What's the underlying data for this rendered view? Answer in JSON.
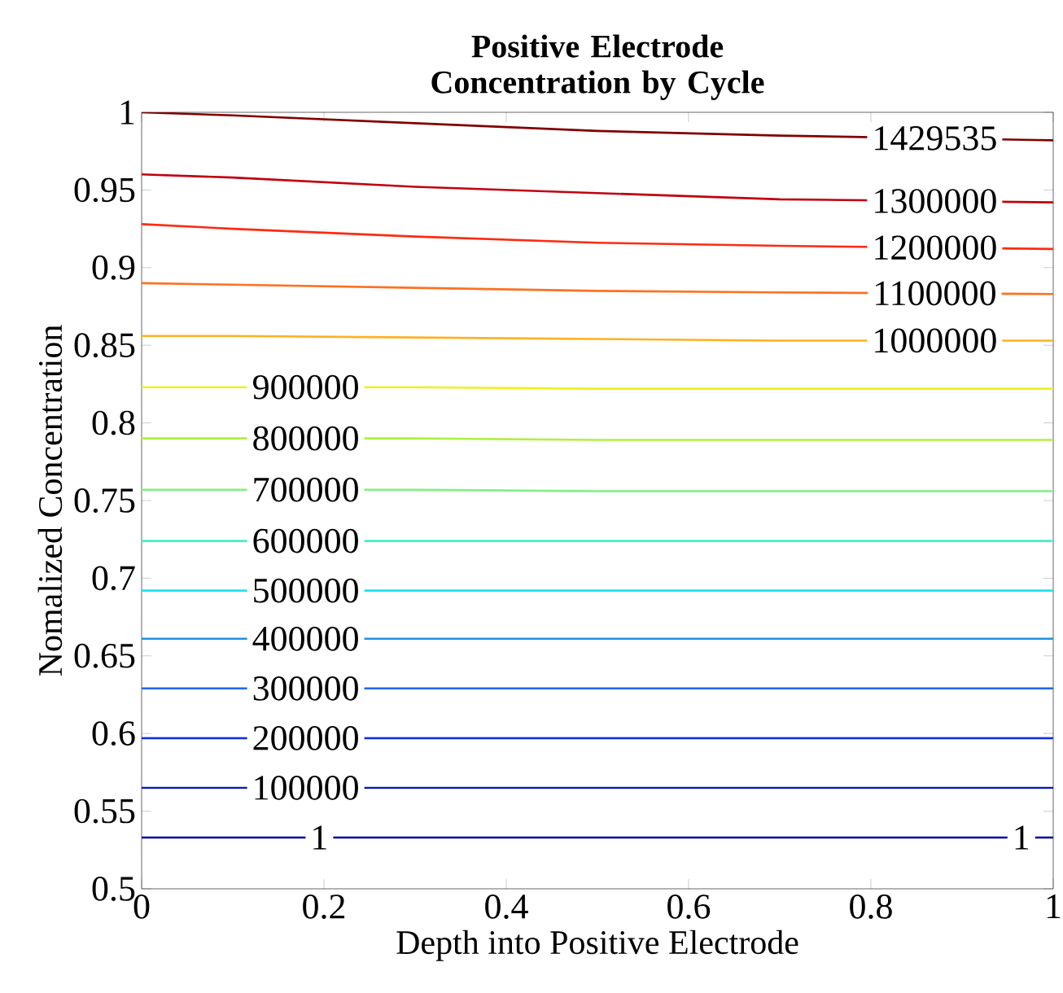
{
  "chart_data": {
    "type": "line",
    "title": "Positive Electrode Concentration by Cycle",
    "xlabel": "Depth into Positive Electrode",
    "ylabel": "Nomalized Concentration",
    "x": [
      0,
      0.1,
      0.3,
      0.5,
      0.7,
      1
    ],
    "xlim": [
      0,
      1
    ],
    "ylim": [
      0.5,
      1
    ],
    "xticks": [
      0,
      0.2,
      0.4,
      0.6,
      0.8,
      1
    ],
    "yticks": [
      0.5,
      0.55,
      0.6,
      0.65,
      0.7,
      0.75,
      0.8,
      0.85,
      0.9,
      0.95,
      1
    ],
    "grid": false,
    "legend": false,
    "marker": "none",
    "line_style": "solid",
    "series": [
      {
        "name": "1429535",
        "color": "#800000",
        "values": [
          1.0,
          0.998,
          0.993,
          0.988,
          0.985,
          0.982
        ]
      },
      {
        "name": "1300000",
        "color": "#c00010",
        "values": [
          0.96,
          0.958,
          0.952,
          0.948,
          0.944,
          0.942
        ]
      },
      {
        "name": "1200000",
        "color": "#ff2a10",
        "values": [
          0.928,
          0.925,
          0.92,
          0.916,
          0.914,
          0.912
        ]
      },
      {
        "name": "1100000",
        "color": "#ff7020",
        "values": [
          0.89,
          0.889,
          0.887,
          0.885,
          0.884,
          0.883
        ]
      },
      {
        "name": "1000000",
        "color": "#ffb020",
        "values": [
          0.856,
          0.856,
          0.855,
          0.854,
          0.853,
          0.853
        ]
      },
      {
        "name": "900000",
        "color": "#f0f020",
        "values": [
          0.823,
          0.823,
          0.823,
          0.822,
          0.822,
          0.822
        ]
      },
      {
        "name": "800000",
        "color": "#b0f040",
        "values": [
          0.79,
          0.79,
          0.79,
          0.789,
          0.789,
          0.789
        ]
      },
      {
        "name": "700000",
        "color": "#80f080",
        "values": [
          0.757,
          0.757,
          0.757,
          0.756,
          0.756,
          0.756
        ]
      },
      {
        "name": "600000",
        "color": "#40f0d0",
        "values": [
          0.724,
          0.724,
          0.724,
          0.724,
          0.724,
          0.724
        ]
      },
      {
        "name": "500000",
        "color": "#20e0f0",
        "values": [
          0.692,
          0.692,
          0.692,
          0.692,
          0.692,
          0.692
        ]
      },
      {
        "name": "400000",
        "color": "#2090e0",
        "values": [
          0.661,
          0.661,
          0.661,
          0.661,
          0.661,
          0.661
        ]
      },
      {
        "name": "300000",
        "color": "#2068f0",
        "values": [
          0.629,
          0.629,
          0.629,
          0.629,
          0.629,
          0.629
        ]
      },
      {
        "name": "200000",
        "color": "#1030e0",
        "values": [
          0.597,
          0.597,
          0.597,
          0.597,
          0.597,
          0.597
        ]
      },
      {
        "name": "100000",
        "color": "#0818c0",
        "values": [
          0.565,
          0.565,
          0.565,
          0.565,
          0.565,
          0.565
        ]
      },
      {
        "name": "1",
        "color": "#0000a0",
        "values": [
          0.533,
          0.533,
          0.533,
          0.533,
          0.533,
          0.533
        ]
      }
    ]
  }
}
